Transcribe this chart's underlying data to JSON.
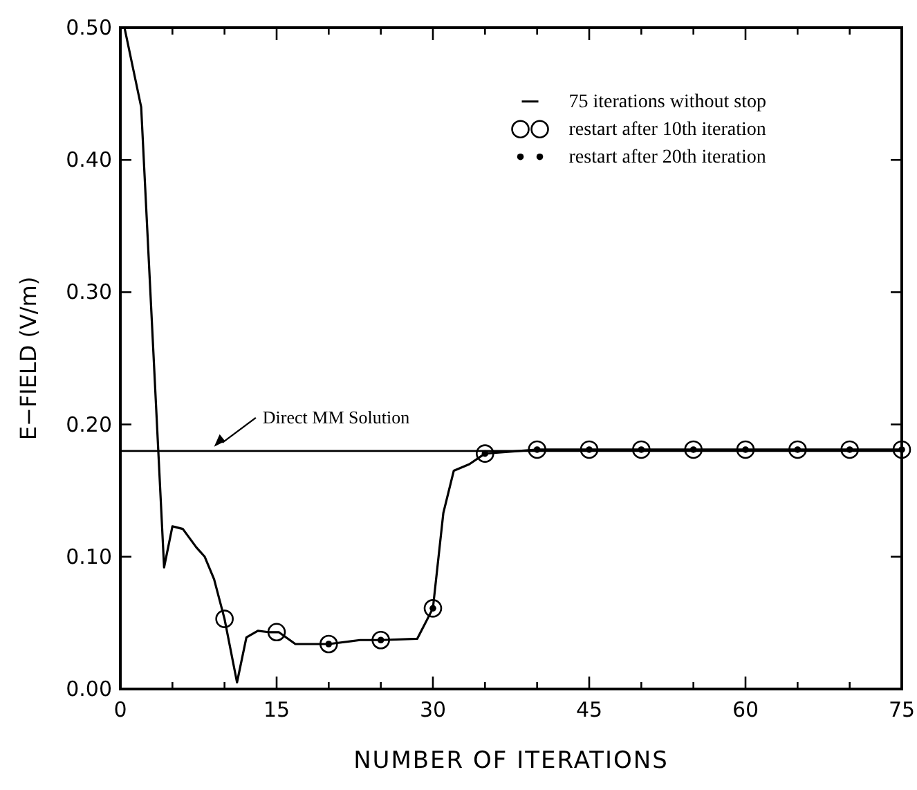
{
  "chart_data": {
    "type": "line",
    "xlabel": "NUMBER OF ITERATIONS",
    "ylabel": "E−FIELD (V/m)",
    "xlim": [
      0,
      75
    ],
    "ylim": [
      0,
      0.5
    ],
    "xticks": [
      0,
      {
        "value": 5,
        "label": null
      },
      {
        "value": 10,
        "label": null
      },
      15,
      {
        "value": 20,
        "label": null
      },
      {
        "value": 25,
        "label": null
      },
      30,
      {
        "value": 35,
        "label": null
      },
      {
        "value": 40,
        "label": null
      },
      45,
      {
        "value": 50,
        "label": null
      },
      {
        "value": 55,
        "label": null
      },
      60,
      {
        "value": 65,
        "label": null
      },
      {
        "value": 70,
        "label": null
      },
      75
    ],
    "yticks": [
      {
        "value": 0,
        "label": "0.00"
      },
      {
        "value": 0.1,
        "label": "0.10"
      },
      {
        "value": 0.2,
        "label": "0.20"
      },
      {
        "value": 0.3,
        "label": "0.30"
      },
      {
        "value": 0.4,
        "label": "0.40"
      },
      {
        "value": 0.5,
        "label": "0.50"
      }
    ],
    "grid": false,
    "legend": "top right",
    "line_style": "solid",
    "ref_lines": [
      {
        "axis": "y",
        "value": 0.18,
        "label": "Direct MM Solution",
        "color": "#000000"
      }
    ],
    "series": [
      {
        "name": "75 iterations without stop",
        "color": "#000000",
        "marker": "none",
        "x": [
          0.4,
          2,
          4.2,
          5,
          6,
          7.3,
          8.1,
          9,
          10,
          11.2,
          12.1,
          13.2,
          14.2,
          15.2,
          16.8,
          20,
          23,
          25,
          28.5,
          30,
          31,
          32,
          33.5,
          35,
          40,
          45,
          50,
          55,
          60,
          65,
          70,
          75
        ],
        "values": [
          0.5,
          0.44,
          0.092,
          0.123,
          0.121,
          0.107,
          0.1,
          0.083,
          0.053,
          0.005,
          0.039,
          0.044,
          0.043,
          0.043,
          0.034,
          0.034,
          0.037,
          0.037,
          0.038,
          0.061,
          0.133,
          0.165,
          0.17,
          0.178,
          0.181,
          0.181,
          0.181,
          0.181,
          0.181,
          0.181,
          0.181,
          0.181
        ]
      },
      {
        "name": "restart after 10th iteration",
        "type": "scatter",
        "color": "#000000",
        "marker": "circle",
        "x": [
          10,
          15,
          20,
          25,
          30,
          35,
          40,
          45,
          50,
          55,
          60,
          65,
          70,
          75
        ],
        "values": [
          0.053,
          0.043,
          0.034,
          0.037,
          0.061,
          0.178,
          0.181,
          0.181,
          0.181,
          0.181,
          0.181,
          0.181,
          0.181,
          0.181
        ]
      },
      {
        "name": "restart after 20th iteration",
        "type": "scatter",
        "color": "#000000",
        "marker": "dot",
        "x": [
          20,
          25,
          30,
          35,
          40,
          45,
          50,
          55,
          60,
          65,
          70,
          75
        ],
        "values": [
          0.034,
          0.037,
          0.061,
          0.178,
          0.181,
          0.181,
          0.181,
          0.181,
          0.181,
          0.181,
          0.181,
          0.181
        ]
      }
    ]
  }
}
